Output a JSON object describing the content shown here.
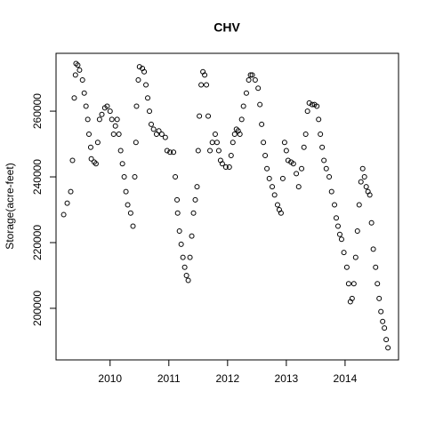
{
  "chart_data": {
    "type": "scatter",
    "title": "CHV",
    "y_label": "Storage(acre-feet)",
    "x": [
      2009.21,
      2009.27,
      2009.33,
      2009.36,
      2009.39,
      2009.41,
      2009.42,
      2009.45,
      2009.48,
      2009.53,
      2009.56,
      2009.59,
      2009.62,
      2009.64,
      2009.67,
      2009.68,
      2009.73,
      2009.76,
      2009.79,
      2009.82,
      2009.86,
      2009.91,
      2009.95,
      2010.0,
      2010.03,
      2010.06,
      2010.09,
      2010.12,
      2010.15,
      2010.18,
      2010.21,
      2010.24,
      2010.27,
      2010.3,
      2010.35,
      2010.39,
      2010.42,
      2010.44,
      2010.45,
      2010.48,
      2010.5,
      2010.55,
      2010.58,
      2010.61,
      2010.64,
      2010.67,
      2010.7,
      2010.74,
      2010.79,
      2010.83,
      2010.88,
      2010.94,
      2010.97,
      2011.02,
      2011.08,
      2011.11,
      2011.14,
      2011.15,
      2011.18,
      2011.21,
      2011.24,
      2011.27,
      2011.3,
      2011.33,
      2011.36,
      2011.39,
      2011.42,
      2011.45,
      2011.48,
      2011.5,
      2011.52,
      2011.55,
      2011.58,
      2011.61,
      2011.64,
      2011.67,
      2011.7,
      2011.74,
      2011.79,
      2011.82,
      2011.85,
      2011.88,
      2011.91,
      2011.97,
      2012.03,
      2012.06,
      2012.09,
      2012.12,
      2012.15,
      2012.18,
      2012.21,
      2012.24,
      2012.27,
      2012.32,
      2012.36,
      2012.39,
      2012.42,
      2012.47,
      2012.52,
      2012.55,
      2012.58,
      2012.61,
      2012.64,
      2012.67,
      2012.71,
      2012.76,
      2012.8,
      2012.85,
      2012.88,
      2012.91,
      2012.94,
      2012.97,
      2013.0,
      2013.03,
      2013.08,
      2013.12,
      2013.17,
      2013.21,
      2013.26,
      2013.3,
      2013.33,
      2013.36,
      2013.39,
      2013.44,
      2013.48,
      2013.52,
      2013.55,
      2013.58,
      2013.61,
      2013.64,
      2013.68,
      2013.73,
      2013.77,
      2013.82,
      2013.85,
      2013.88,
      2013.91,
      2013.94,
      2013.98,
      2014.03,
      2014.06,
      2014.09,
      2014.12,
      2014.15,
      2014.18,
      2014.21,
      2014.24,
      2014.27,
      2014.3,
      2014.33,
      2014.36,
      2014.39,
      2014.42,
      2014.45,
      2014.48,
      2014.52,
      2014.55,
      2014.58,
      2014.61,
      2014.64,
      2014.67,
      2014.7,
      2014.73
    ],
    "values": [
      228500,
      232000,
      235500,
      245000,
      264000,
      271000,
      274500,
      274000,
      272500,
      269500,
      265500,
      261500,
      257500,
      253000,
      249000,
      245500,
      244500,
      244000,
      250500,
      257500,
      259000,
      261000,
      261500,
      260000,
      257500,
      253000,
      255500,
      257500,
      253000,
      248000,
      244000,
      240000,
      235500,
      231500,
      229000,
      225000,
      240000,
      250500,
      261500,
      269500,
      273500,
      273000,
      272000,
      268000,
      264000,
      260000,
      256000,
      254500,
      253000,
      254000,
      253000,
      252000,
      248000,
      247500,
      247500,
      240000,
      233000,
      229000,
      223500,
      219500,
      215500,
      212500,
      210000,
      208500,
      215500,
      222000,
      229000,
      233000,
      237000,
      248000,
      258500,
      268000,
      272000,
      271000,
      268000,
      258500,
      248000,
      250500,
      253000,
      250500,
      248000,
      245000,
      244000,
      243000,
      243000,
      246500,
      250500,
      253000,
      254500,
      254000,
      253000,
      257500,
      261500,
      265500,
      269500,
      271000,
      271000,
      269500,
      267000,
      262000,
      256000,
      250500,
      246500,
      242500,
      239500,
      237000,
      234500,
      231500,
      230000,
      229000,
      239500,
      250500,
      248000,
      245000,
      244500,
      244000,
      241000,
      237000,
      242500,
      249000,
      253000,
      260000,
      262500,
      262000,
      262000,
      261500,
      257500,
      253000,
      249000,
      245000,
      242500,
      240000,
      235500,
      231500,
      227500,
      225000,
      222500,
      221000,
      217000,
      212500,
      207500,
      202000,
      203000,
      207500,
      215500,
      223500,
      231500,
      238500,
      242500,
      240000,
      237000,
      235500,
      234500,
      226000,
      218000,
      212500,
      207500,
      203000,
      199000,
      196000,
      194000,
      190500,
      188000
    ],
    "xlim": [
      2009.08,
      2014.91
    ],
    "ylim": [
      184300,
      277600
    ],
    "xticks": [
      2010,
      2011,
      2012,
      2013,
      2014
    ],
    "yticks": [
      200000,
      220000,
      240000,
      260000
    ],
    "color": "#000000"
  }
}
